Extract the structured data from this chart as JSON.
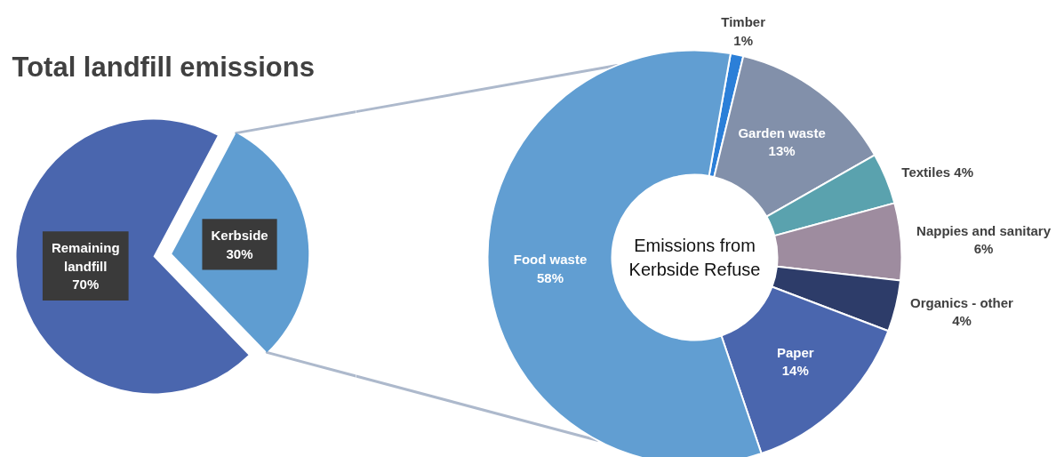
{
  "chart_data": [
    {
      "type": "pie",
      "title": "Total landfill emissions",
      "categories": [
        "Remaining landfill",
        "Kerbside"
      ],
      "values": [
        70,
        30
      ],
      "value_labels": [
        "70%",
        "30%"
      ],
      "colors": [
        "#4a66ae",
        "#5f9dd1"
      ]
    },
    {
      "type": "donut",
      "title": "Emissions from Kerbside Refuse",
      "categories": [
        "Timber",
        "Garden waste",
        "Textiles",
        "Nappies and sanitary",
        "Organics - other",
        "Paper",
        "Food waste"
      ],
      "values": [
        1,
        13,
        4,
        6,
        4,
        14,
        58
      ],
      "value_labels": [
        "1%",
        "13%",
        "4%",
        "6%",
        "4%",
        "14%",
        "58%"
      ],
      "colors": [
        "#2b7fd8",
        "#8290aa",
        "#5aa2ae",
        "#9e8c9f",
        "#2d3c69",
        "#4a66ae",
        "#619ed2"
      ]
    }
  ]
}
